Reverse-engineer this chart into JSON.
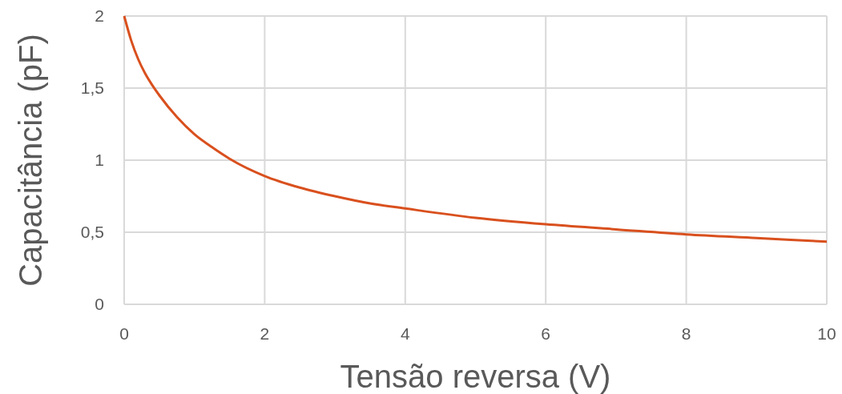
{
  "chart_data": {
    "type": "line",
    "xlabel": "Tensão reversa (V)",
    "ylabel": "Capacitância (pF)",
    "x": [
      0,
      0.1,
      0.2,
      0.3,
      0.4,
      0.5,
      0.75,
      1,
      1.25,
      1.5,
      2,
      2.5,
      3,
      3.5,
      4,
      5,
      6,
      7,
      8,
      9,
      10
    ],
    "series": [
      {
        "color": "#d9501e",
        "values": [
          2.0,
          1.83,
          1.7,
          1.6,
          1.52,
          1.45,
          1.3,
          1.18,
          1.09,
          1.01,
          0.89,
          0.81,
          0.75,
          0.7,
          0.665,
          0.6,
          0.555,
          0.52,
          0.485,
          0.46,
          0.435
        ]
      }
    ],
    "xlim": [
      0,
      10
    ],
    "xticks": [
      0,
      2,
      4,
      6,
      8,
      10
    ],
    "ylim": [
      0,
      2
    ],
    "yticks": [
      0,
      {
        "value": 0.5,
        "label": "0,5"
      },
      1,
      {
        "value": 1.5,
        "label": "1,5"
      },
      2
    ],
    "grid": true,
    "marker": "none",
    "line_style": "solid"
  }
}
